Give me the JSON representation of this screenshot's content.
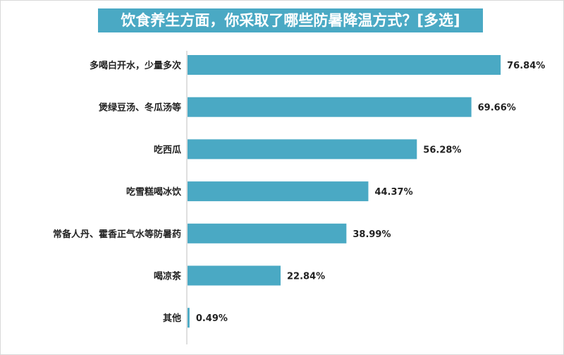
{
  "chart_data": {
    "type": "bar",
    "orientation": "horizontal",
    "title": "饮食养生方面，你采取了哪些防暑降温方式？[多选]",
    "categories": [
      "多喝白开水，少量多次",
      "煲绿豆汤、冬瓜汤等",
      "吃西瓜",
      "吃雪糕喝冰饮",
      "常备人丹、霍香正气水等防暑药",
      "喝凉茶",
      "其他"
    ],
    "values": [
      76.84,
      69.66,
      56.28,
      44.37,
      38.99,
      22.84,
      0.49
    ],
    "value_labels": [
      "76.84%",
      "69.66%",
      "56.28%",
      "44.37%",
      "38.99%",
      "22.84%",
      "0.49%"
    ],
    "unit": "%",
    "xlim": [
      0,
      100
    ],
    "grid": false,
    "legend": "none",
    "colors": {
      "bar": "#4aa9c4",
      "title_bg": "#4aa9c4",
      "title_text": "#ffffff",
      "axis": "#bfbfbf",
      "text": "#222222"
    }
  }
}
